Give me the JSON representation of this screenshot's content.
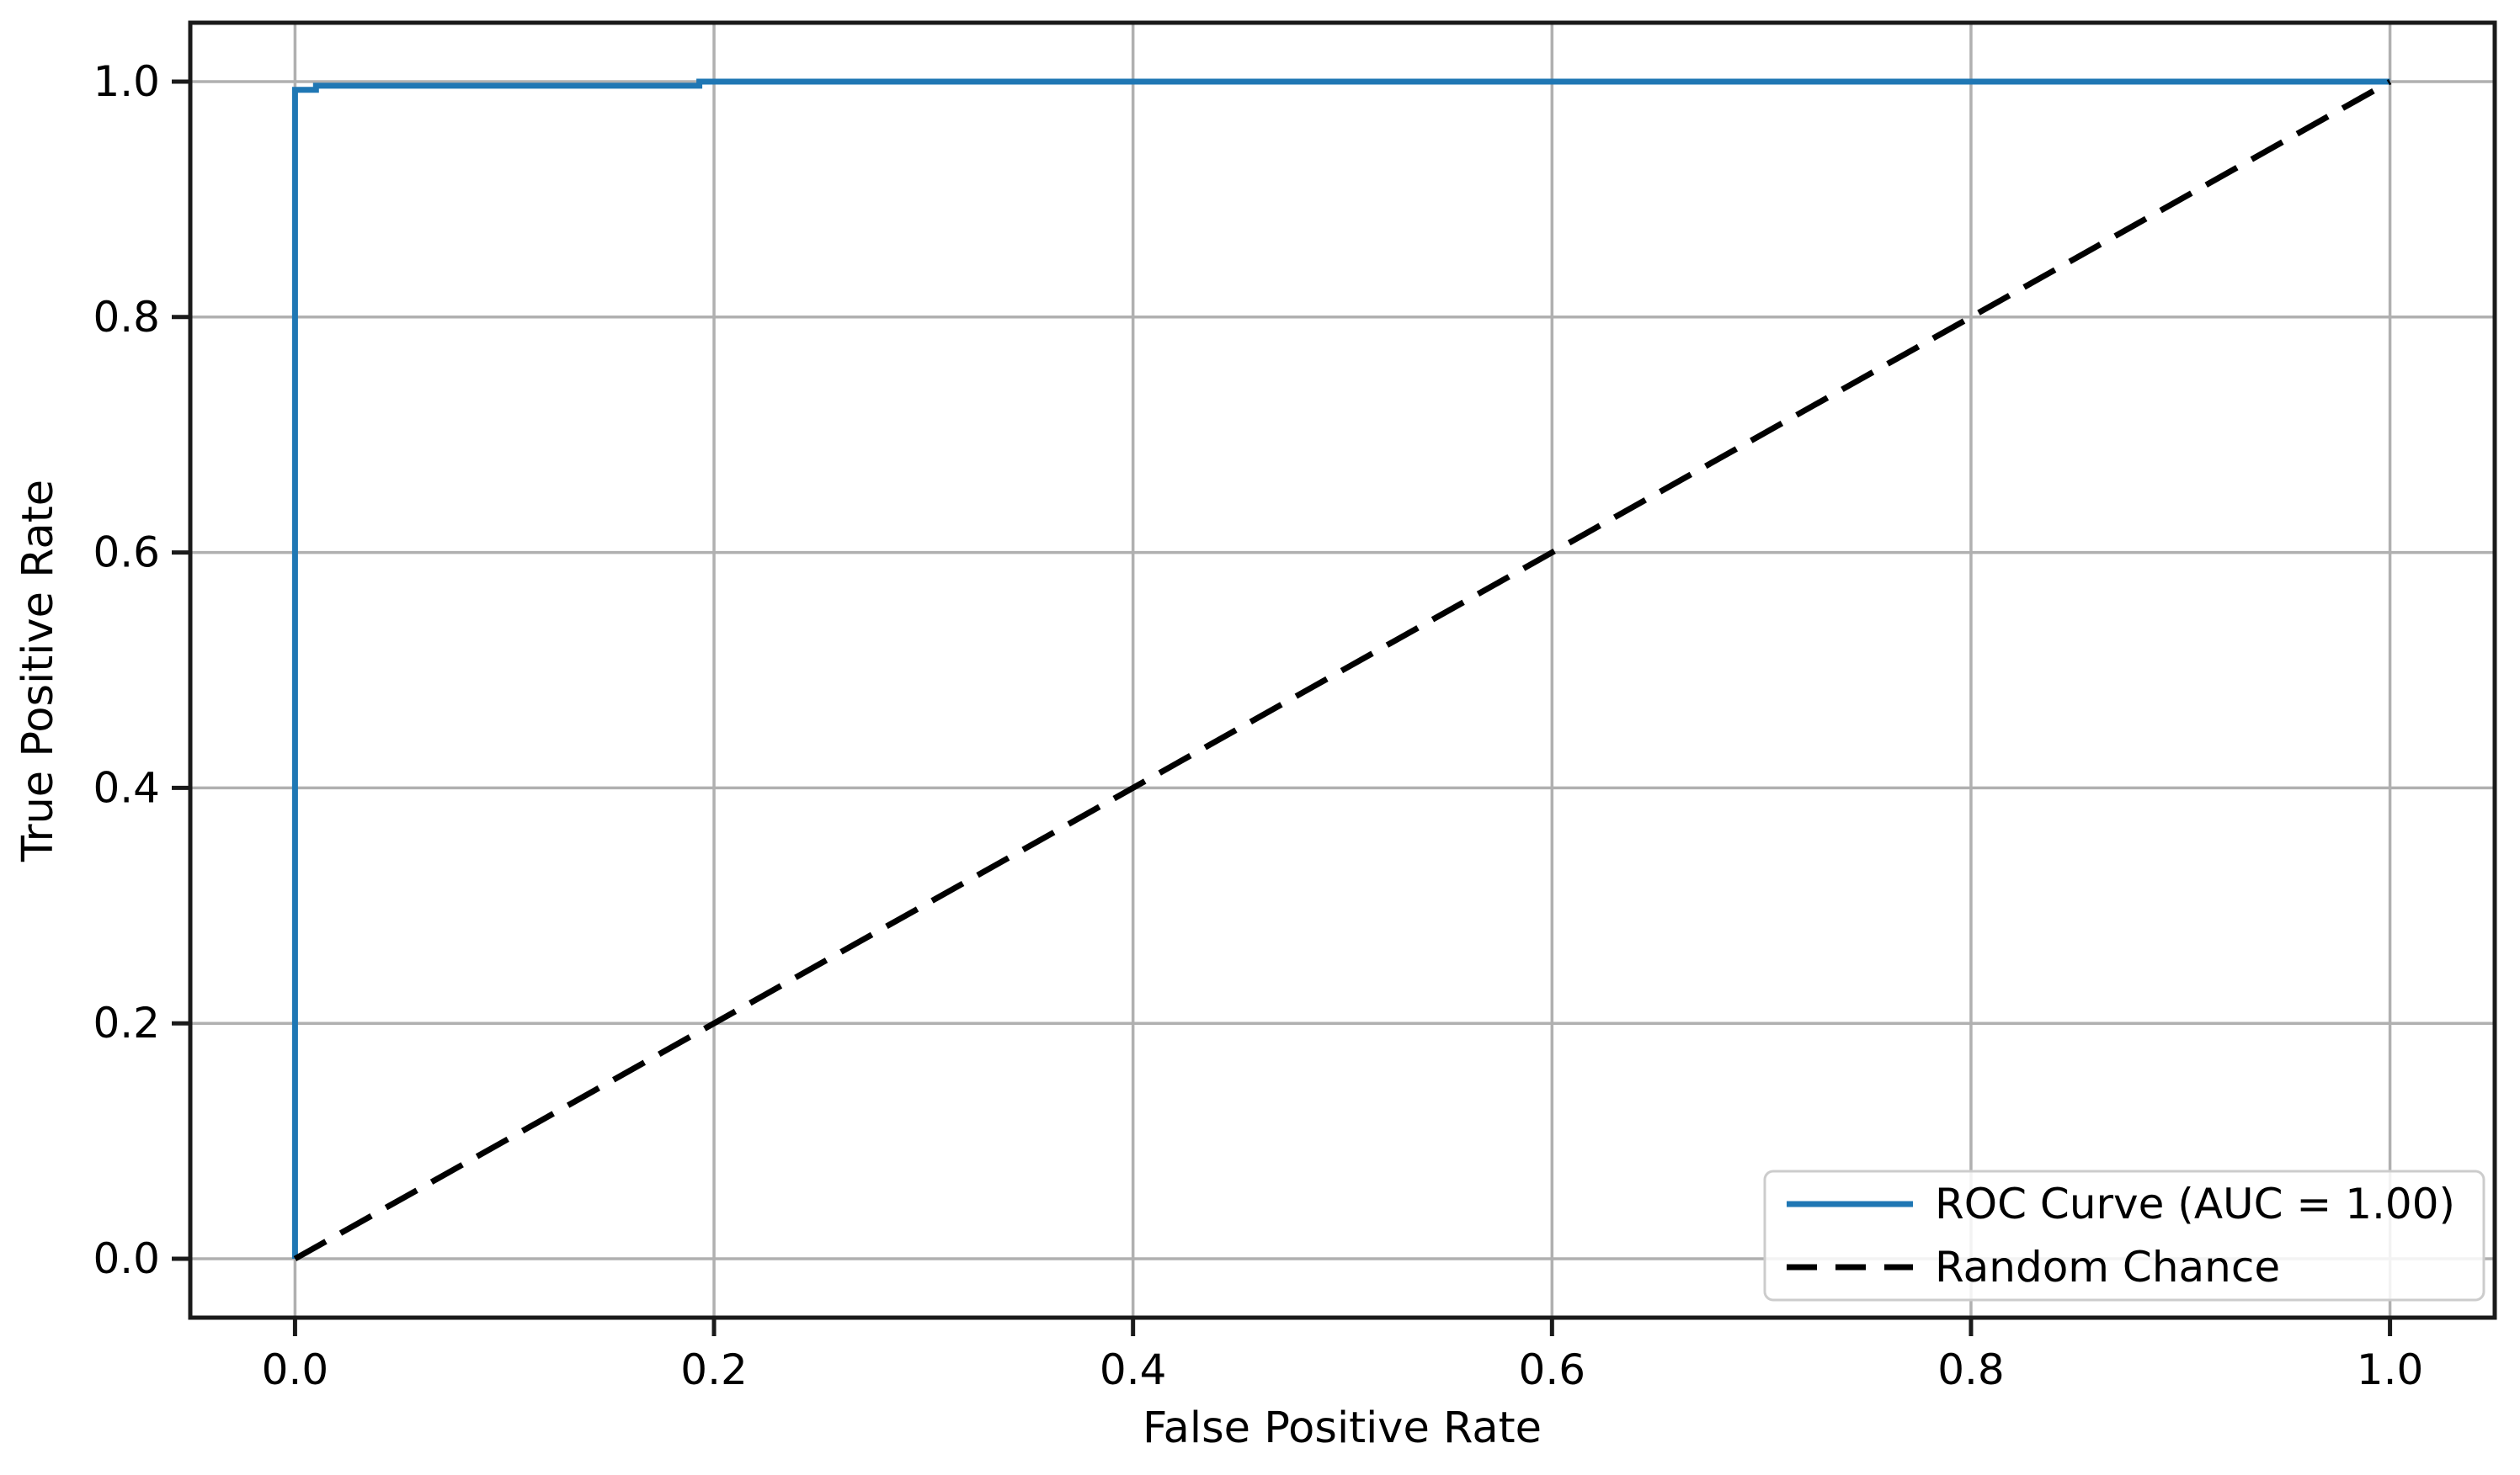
{
  "chart_data": {
    "type": "line",
    "title": "",
    "xlabel": "False Positive Rate",
    "ylabel": "True Positive Rate",
    "xlim": [
      -0.05,
      1.05
    ],
    "ylim": [
      -0.05,
      1.05
    ],
    "grid": true,
    "background_color": "#ffffff",
    "grid_color": "#b0b0b0",
    "spine_color": "#1a1a1a",
    "xticks": {
      "values": [
        0.0,
        0.2,
        0.4,
        0.6,
        0.8,
        1.0
      ],
      "labels": [
        "0.0",
        "0.2",
        "0.4",
        "0.6",
        "0.8",
        "1.0"
      ]
    },
    "yticks": {
      "values": [
        0.0,
        0.2,
        0.4,
        0.6,
        0.8,
        1.0
      ],
      "labels": [
        "0.0",
        "0.2",
        "0.4",
        "0.6",
        "0.8",
        "1.0"
      ]
    },
    "legend": {
      "position": "lower right"
    },
    "series": [
      {
        "name": "ROC Curve (AUC = 1.00)",
        "color": "#1f77b4",
        "line_style": "solid",
        "x": [
          0.0,
          0.0,
          0.01,
          0.01,
          0.193,
          0.193,
          1.0
        ],
        "y": [
          0.0,
          0.993,
          0.993,
          0.9965,
          0.9965,
          1.0,
          1.0
        ]
      },
      {
        "name": "Random Chance",
        "color": "#000000",
        "line_style": "dashed",
        "x": [
          0.0,
          1.0
        ],
        "y": [
          0.0,
          1.0
        ]
      }
    ]
  }
}
